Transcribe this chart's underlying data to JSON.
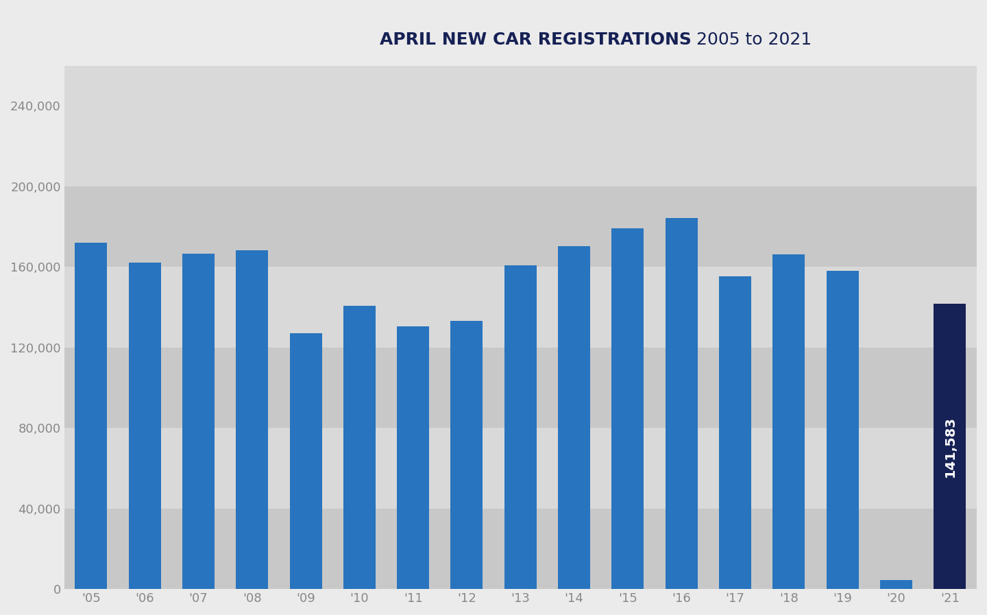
{
  "title_bold": "APRIL NEW CAR REGISTRATIONS",
  "title_regular": " 2005 to 2021",
  "years": [
    "'05",
    "'06",
    "'07",
    "'08",
    "'09",
    "'10",
    "'11",
    "'12",
    "'13",
    "'14",
    "'15",
    "'16",
    "'17",
    "'18",
    "'19",
    "'20",
    "'21"
  ],
  "values": [
    172004,
    161997,
    166454,
    168460,
    127004,
    140550,
    130540,
    133200,
    160805,
    170350,
    179236,
    184371,
    155447,
    166392,
    158054,
    4321,
    141583
  ],
  "bar_colors": [
    "#2874be",
    "#2874be",
    "#2874be",
    "#2874be",
    "#2874be",
    "#2874be",
    "#2874be",
    "#2874be",
    "#2874be",
    "#2874be",
    "#2874be",
    "#2874be",
    "#2874be",
    "#2874be",
    "#2874be",
    "#2874be",
    "#162155"
  ],
  "highlight_value": "141,583",
  "highlight_bar_index": 16,
  "background_color": "#ebebeb",
  "plot_bg_color": "#ebebeb",
  "band_light": "#d9d9d9",
  "band_dark": "#c8c8c8",
  "ylim": [
    0,
    260000
  ],
  "yticks": [
    0,
    40000,
    80000,
    120000,
    160000,
    200000,
    240000
  ],
  "ytick_labels": [
    "0",
    "40,000",
    "80,000",
    "120,000",
    "160,000",
    "200,000",
    "240,000"
  ],
  "title_color": "#162155",
  "tick_color": "#888888",
  "title_bold_fontsize": 18,
  "title_regular_fontsize": 18,
  "tick_fontsize": 13,
  "bar_width": 0.6
}
